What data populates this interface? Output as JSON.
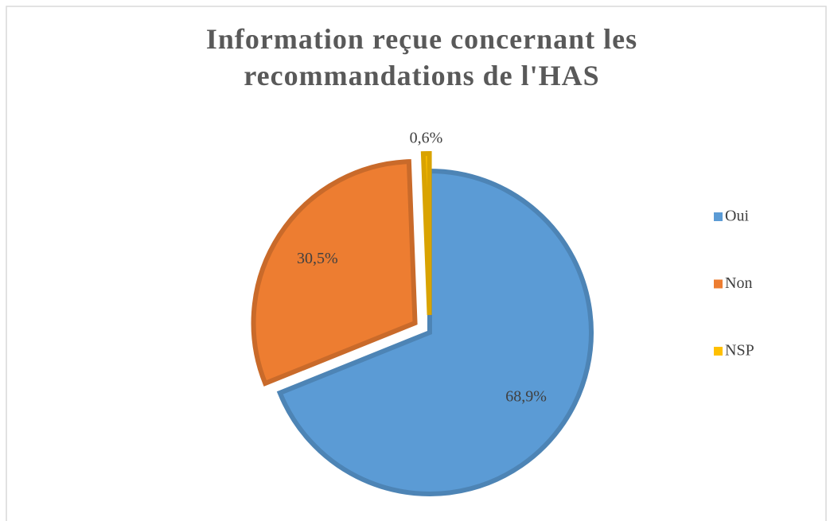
{
  "chart_data": {
    "type": "pie",
    "title": "Information reçue concernant les recommandations de l'HAS",
    "categories": [
      "Oui",
      "Non",
      "NSP"
    ],
    "values": [
      68.9,
      30.5,
      0.6
    ],
    "value_labels": [
      "68,9%",
      "30,5%",
      "0,6%"
    ],
    "colors": [
      "#5b9bd5",
      "#ed7d31",
      "#ffc000"
    ],
    "legend": "right"
  }
}
